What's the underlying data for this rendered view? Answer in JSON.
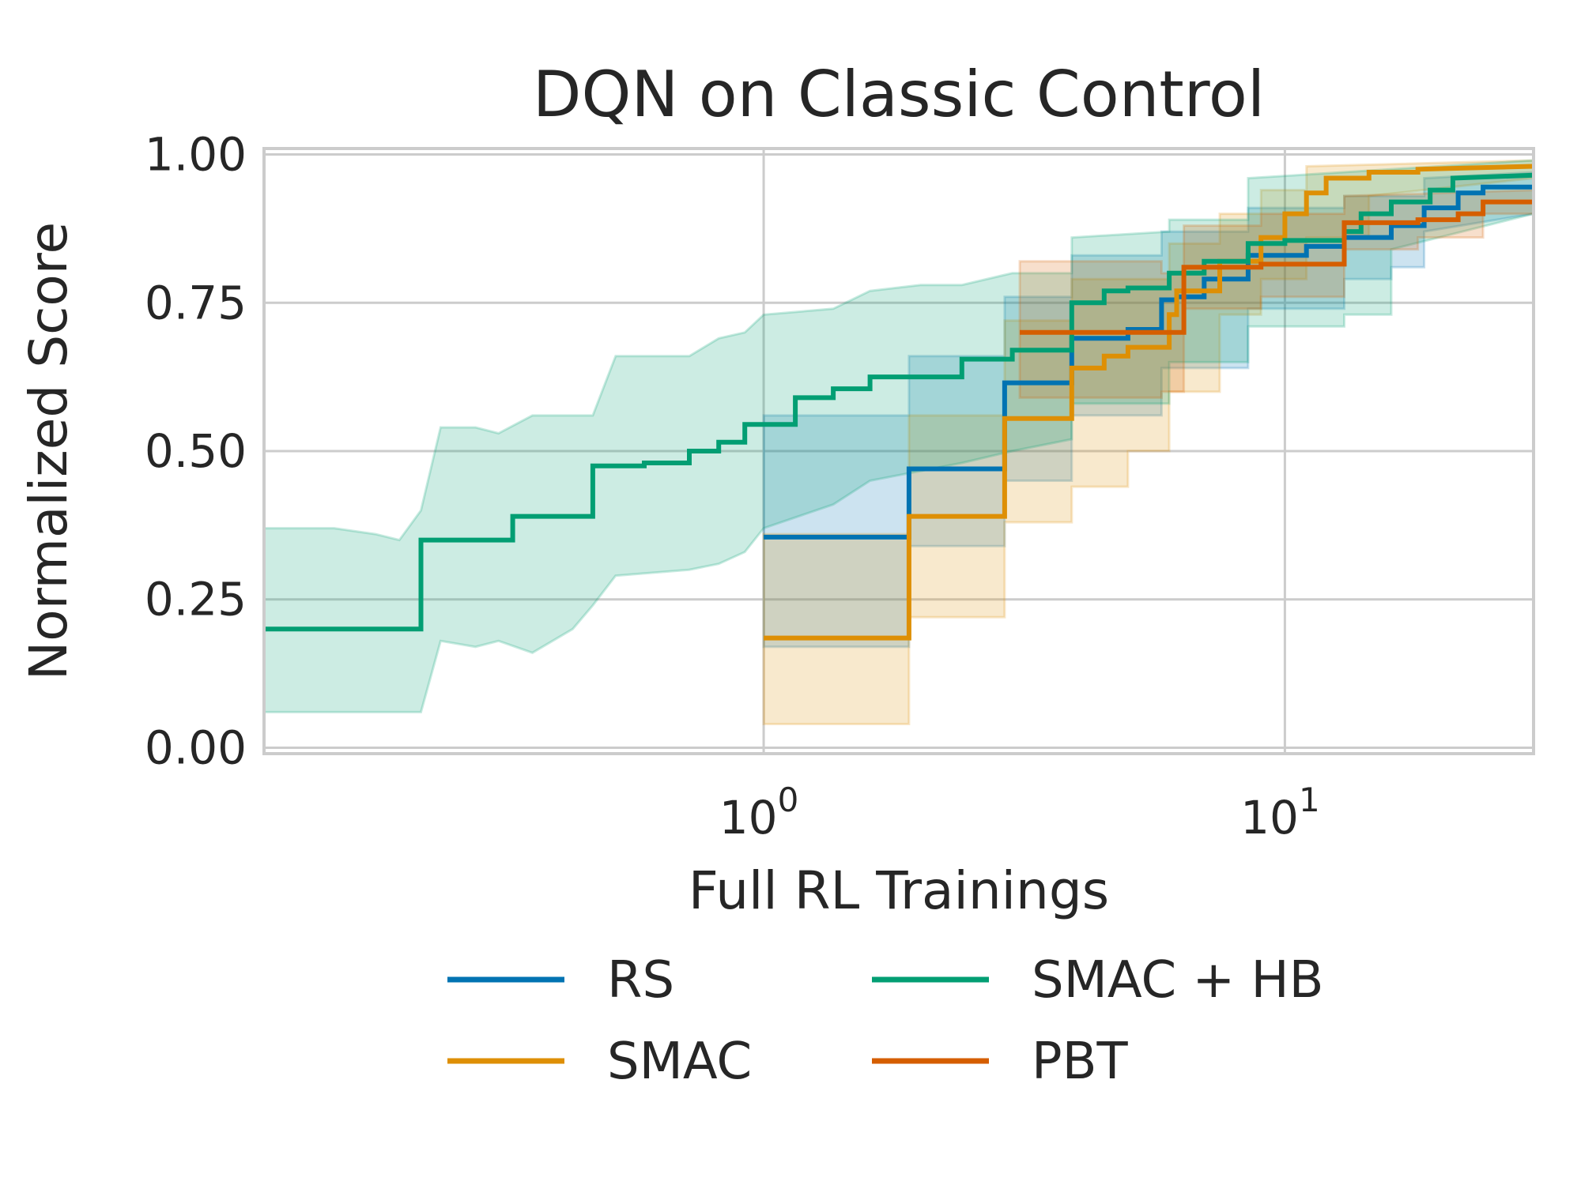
{
  "chart_data": {
    "type": "line",
    "title": "DQN on Classic Control",
    "xlabel": "Full RL Trainings",
    "ylabel": "Normalized Score",
    "x_scale": "log",
    "xlim": [
      0.11,
      30
    ],
    "ylim": [
      -0.01,
      1.01
    ],
    "x_ticks": [
      {
        "value": 1,
        "base": "10",
        "exp": "0"
      },
      {
        "value": 10,
        "base": "10",
        "exp": "1"
      }
    ],
    "y_ticks": [
      {
        "value": 0.0,
        "label": "0.00"
      },
      {
        "value": 0.25,
        "label": "0.25"
      },
      {
        "value": 0.5,
        "label": "0.50"
      },
      {
        "value": 0.75,
        "label": "0.75"
      },
      {
        "value": 1.0,
        "label": "1.00"
      }
    ],
    "grid": true,
    "legend_position": "bottom-center",
    "series": [
      {
        "name": "RS",
        "color": "#0173b2",
        "points": [
          [
            1.0,
            0.355
          ],
          [
            1.9,
            0.355
          ],
          [
            1.9,
            0.47
          ],
          [
            2.9,
            0.47
          ],
          [
            2.9,
            0.615
          ],
          [
            3.9,
            0.615
          ],
          [
            3.9,
            0.69
          ],
          [
            5.0,
            0.69
          ],
          [
            5.0,
            0.705
          ],
          [
            5.8,
            0.705
          ],
          [
            5.8,
            0.755
          ],
          [
            6.2,
            0.755
          ],
          [
            6.2,
            0.76
          ],
          [
            7.0,
            0.76
          ],
          [
            7.0,
            0.79
          ],
          [
            8.5,
            0.79
          ],
          [
            8.5,
            0.83
          ],
          [
            11.0,
            0.83
          ],
          [
            11.0,
            0.845
          ],
          [
            13.0,
            0.845
          ],
          [
            13.0,
            0.86
          ],
          [
            16.0,
            0.86
          ],
          [
            16.0,
            0.88
          ],
          [
            18.5,
            0.88
          ],
          [
            18.5,
            0.91
          ],
          [
            21.5,
            0.91
          ],
          [
            21.5,
            0.935
          ],
          [
            24.0,
            0.935
          ],
          [
            24.0,
            0.945
          ],
          [
            30.0,
            0.945
          ]
        ],
        "band_upper": [
          [
            1.0,
            0.56
          ],
          [
            1.9,
            0.56
          ],
          [
            1.9,
            0.66
          ],
          [
            2.9,
            0.66
          ],
          [
            2.9,
            0.76
          ],
          [
            3.9,
            0.76
          ],
          [
            3.9,
            0.83
          ],
          [
            5.8,
            0.83
          ],
          [
            5.8,
            0.87
          ],
          [
            8.5,
            0.87
          ],
          [
            8.5,
            0.91
          ],
          [
            13.0,
            0.91
          ],
          [
            13.0,
            0.93
          ],
          [
            18.5,
            0.93
          ],
          [
            18.5,
            0.96
          ],
          [
            30.0,
            0.97
          ]
        ],
        "band_lower": [
          [
            1.0,
            0.17
          ],
          [
            1.9,
            0.17
          ],
          [
            1.9,
            0.34
          ],
          [
            2.9,
            0.34
          ],
          [
            2.9,
            0.45
          ],
          [
            3.9,
            0.45
          ],
          [
            3.9,
            0.56
          ],
          [
            5.8,
            0.56
          ],
          [
            5.8,
            0.64
          ],
          [
            8.5,
            0.64
          ],
          [
            8.5,
            0.74
          ],
          [
            13.0,
            0.74
          ],
          [
            13.0,
            0.79
          ],
          [
            16.0,
            0.79
          ],
          [
            16.0,
            0.81
          ],
          [
            18.5,
            0.81
          ],
          [
            18.5,
            0.87
          ],
          [
            30.0,
            0.9
          ]
        ]
      },
      {
        "name": "SMAC",
        "color": "#de8f05",
        "points": [
          [
            1.0,
            0.185
          ],
          [
            1.9,
            0.185
          ],
          [
            1.9,
            0.39
          ],
          [
            2.9,
            0.39
          ],
          [
            2.9,
            0.555
          ],
          [
            3.9,
            0.555
          ],
          [
            3.9,
            0.64
          ],
          [
            4.5,
            0.64
          ],
          [
            4.5,
            0.66
          ],
          [
            5.0,
            0.66
          ],
          [
            5.0,
            0.675
          ],
          [
            6.0,
            0.675
          ],
          [
            6.0,
            0.73
          ],
          [
            6.2,
            0.73
          ],
          [
            6.2,
            0.77
          ],
          [
            7.5,
            0.77
          ],
          [
            7.5,
            0.82
          ],
          [
            9.0,
            0.82
          ],
          [
            9.0,
            0.86
          ],
          [
            10.0,
            0.86
          ],
          [
            10.0,
            0.9
          ],
          [
            11.0,
            0.9
          ],
          [
            11.0,
            0.935
          ],
          [
            12.0,
            0.935
          ],
          [
            12.0,
            0.96
          ],
          [
            14.5,
            0.96
          ],
          [
            14.5,
            0.97
          ],
          [
            18.0,
            0.97
          ],
          [
            18.0,
            0.975
          ],
          [
            30.0,
            0.98
          ]
        ],
        "band_upper": [
          [
            1.0,
            0.36
          ],
          [
            1.9,
            0.36
          ],
          [
            1.9,
            0.56
          ],
          [
            2.9,
            0.56
          ],
          [
            2.9,
            0.72
          ],
          [
            3.9,
            0.72
          ],
          [
            3.9,
            0.79
          ],
          [
            6.0,
            0.79
          ],
          [
            6.0,
            0.85
          ],
          [
            7.5,
            0.85
          ],
          [
            7.5,
            0.9
          ],
          [
            9.0,
            0.9
          ],
          [
            9.0,
            0.94
          ],
          [
            11.0,
            0.94
          ],
          [
            11.0,
            0.98
          ],
          [
            30.0,
            0.99
          ]
        ],
        "band_lower": [
          [
            1.0,
            0.04
          ],
          [
            1.9,
            0.04
          ],
          [
            1.9,
            0.22
          ],
          [
            2.9,
            0.22
          ],
          [
            2.9,
            0.38
          ],
          [
            3.9,
            0.38
          ],
          [
            3.9,
            0.44
          ],
          [
            5.0,
            0.44
          ],
          [
            5.0,
            0.5
          ],
          [
            6.0,
            0.5
          ],
          [
            6.0,
            0.6
          ],
          [
            7.5,
            0.6
          ],
          [
            7.5,
            0.73
          ],
          [
            9.0,
            0.73
          ],
          [
            9.0,
            0.79
          ],
          [
            11.0,
            0.79
          ],
          [
            11.0,
            0.86
          ],
          [
            14.5,
            0.86
          ],
          [
            14.5,
            0.93
          ],
          [
            30.0,
            0.96
          ]
        ]
      },
      {
        "name": "SMAC + HB",
        "color": "#029e73",
        "points": [
          [
            0.11,
            0.2
          ],
          [
            0.22,
            0.2
          ],
          [
            0.22,
            0.35
          ],
          [
            0.33,
            0.35
          ],
          [
            0.33,
            0.39
          ],
          [
            0.47,
            0.39
          ],
          [
            0.47,
            0.475
          ],
          [
            0.59,
            0.475
          ],
          [
            0.59,
            0.48
          ],
          [
            0.72,
            0.48
          ],
          [
            0.72,
            0.5
          ],
          [
            0.82,
            0.5
          ],
          [
            0.82,
            0.515
          ],
          [
            0.92,
            0.515
          ],
          [
            0.92,
            0.545
          ],
          [
            1.15,
            0.545
          ],
          [
            1.15,
            0.59
          ],
          [
            1.36,
            0.59
          ],
          [
            1.36,
            0.605
          ],
          [
            1.6,
            0.605
          ],
          [
            1.6,
            0.625
          ],
          [
            2.4,
            0.625
          ],
          [
            2.4,
            0.655
          ],
          [
            3.0,
            0.655
          ],
          [
            3.0,
            0.67
          ],
          [
            3.9,
            0.67
          ],
          [
            3.9,
            0.75
          ],
          [
            4.5,
            0.75
          ],
          [
            4.5,
            0.77
          ],
          [
            5.0,
            0.77
          ],
          [
            5.0,
            0.775
          ],
          [
            6.0,
            0.775
          ],
          [
            6.0,
            0.8
          ],
          [
            7.0,
            0.8
          ],
          [
            7.0,
            0.82
          ],
          [
            8.5,
            0.82
          ],
          [
            8.5,
            0.85
          ],
          [
            10.0,
            0.85
          ],
          [
            10.0,
            0.855
          ],
          [
            13.0,
            0.855
          ],
          [
            13.0,
            0.87
          ],
          [
            14.0,
            0.87
          ],
          [
            14.0,
            0.9
          ],
          [
            16.0,
            0.9
          ],
          [
            16.0,
            0.92
          ],
          [
            19.0,
            0.92
          ],
          [
            19.0,
            0.94
          ],
          [
            21.0,
            0.94
          ],
          [
            21.0,
            0.96
          ],
          [
            30.0,
            0.965
          ]
        ],
        "band_upper": [
          [
            0.11,
            0.37
          ],
          [
            0.15,
            0.37
          ],
          [
            0.18,
            0.36
          ],
          [
            0.2,
            0.35
          ],
          [
            0.22,
            0.4
          ],
          [
            0.24,
            0.54
          ],
          [
            0.28,
            0.54
          ],
          [
            0.31,
            0.53
          ],
          [
            0.36,
            0.56
          ],
          [
            0.43,
            0.56
          ],
          [
            0.47,
            0.56
          ],
          [
            0.52,
            0.66
          ],
          [
            0.72,
            0.66
          ],
          [
            0.82,
            0.69
          ],
          [
            0.92,
            0.7
          ],
          [
            1.0,
            0.73
          ],
          [
            1.36,
            0.74
          ],
          [
            1.6,
            0.77
          ],
          [
            2.0,
            0.78
          ],
          [
            2.4,
            0.78
          ],
          [
            3.0,
            0.8
          ],
          [
            3.9,
            0.8
          ],
          [
            3.9,
            0.86
          ],
          [
            6.0,
            0.87
          ],
          [
            6.0,
            0.89
          ],
          [
            8.5,
            0.89
          ],
          [
            8.5,
            0.96
          ],
          [
            30.0,
            0.99
          ]
        ],
        "band_lower": [
          [
            0.11,
            0.06
          ],
          [
            0.15,
            0.06
          ],
          [
            0.2,
            0.06
          ],
          [
            0.22,
            0.06
          ],
          [
            0.24,
            0.18
          ],
          [
            0.28,
            0.17
          ],
          [
            0.31,
            0.18
          ],
          [
            0.36,
            0.16
          ],
          [
            0.43,
            0.2
          ],
          [
            0.47,
            0.24
          ],
          [
            0.52,
            0.29
          ],
          [
            0.72,
            0.3
          ],
          [
            0.82,
            0.31
          ],
          [
            0.92,
            0.33
          ],
          [
            1.0,
            0.37
          ],
          [
            1.36,
            0.41
          ],
          [
            1.6,
            0.45
          ],
          [
            2.4,
            0.48
          ],
          [
            3.0,
            0.5
          ],
          [
            3.9,
            0.52
          ],
          [
            3.9,
            0.58
          ],
          [
            6.0,
            0.58
          ],
          [
            6.0,
            0.65
          ],
          [
            8.5,
            0.65
          ],
          [
            8.5,
            0.71
          ],
          [
            13.0,
            0.71
          ],
          [
            13.0,
            0.73
          ],
          [
            16.0,
            0.73
          ],
          [
            16.0,
            0.84
          ],
          [
            30.0,
            0.9
          ]
        ]
      },
      {
        "name": "PBT",
        "color": "#d55e00",
        "points": [
          [
            3.1,
            0.7
          ],
          [
            3.9,
            0.7
          ],
          [
            3.9,
            0.7
          ],
          [
            5.8,
            0.7
          ],
          [
            5.8,
            0.7
          ],
          [
            6.4,
            0.7
          ],
          [
            6.4,
            0.81
          ],
          [
            9.0,
            0.81
          ],
          [
            9.0,
            0.815
          ],
          [
            13.0,
            0.815
          ],
          [
            13.0,
            0.885
          ],
          [
            18.0,
            0.885
          ],
          [
            18.0,
            0.89
          ],
          [
            21.5,
            0.89
          ],
          [
            21.5,
            0.9
          ],
          [
            24.0,
            0.9
          ],
          [
            24.0,
            0.92
          ],
          [
            30.0,
            0.92
          ]
        ],
        "band_upper": [
          [
            3.1,
            0.82
          ],
          [
            5.8,
            0.82
          ],
          [
            5.8,
            0.8
          ],
          [
            6.4,
            0.8
          ],
          [
            6.4,
            0.88
          ],
          [
            9.0,
            0.88
          ],
          [
            9.0,
            0.9
          ],
          [
            13.0,
            0.9
          ],
          [
            13.0,
            0.93
          ],
          [
            30.0,
            0.94
          ]
        ],
        "band_lower": [
          [
            3.1,
            0.59
          ],
          [
            5.8,
            0.59
          ],
          [
            5.8,
            0.6
          ],
          [
            6.4,
            0.6
          ],
          [
            6.4,
            0.74
          ],
          [
            9.0,
            0.74
          ],
          [
            9.0,
            0.76
          ],
          [
            13.0,
            0.76
          ],
          [
            13.0,
            0.84
          ],
          [
            18.0,
            0.84
          ],
          [
            18.0,
            0.86
          ],
          [
            24.0,
            0.86
          ],
          [
            24.0,
            0.9
          ],
          [
            30.0,
            0.9
          ]
        ]
      }
    ]
  }
}
